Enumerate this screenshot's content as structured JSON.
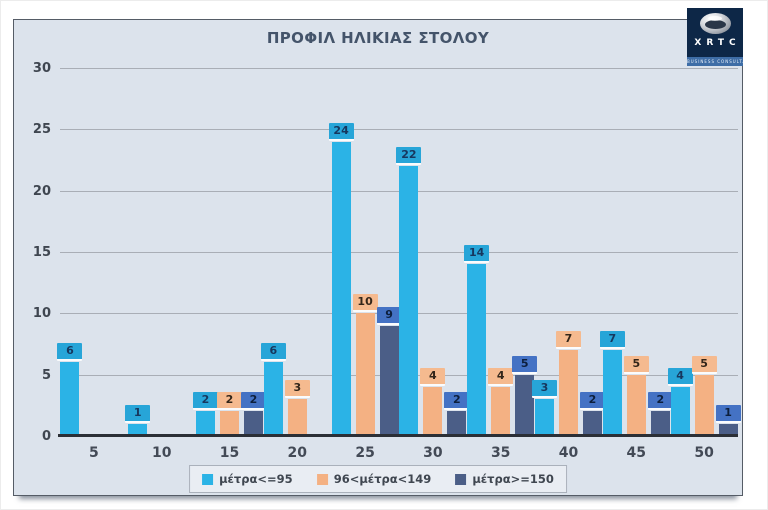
{
  "title": "ΠΡΟΦΙΛ ΗΛΙΚΙΑΣ ΣΤΟΛΟΥ",
  "logo": {
    "name": "XRTC",
    "tagline": "BUSINESS CONSULTANTS"
  },
  "colors": {
    "chart_background": "#dce3ec",
    "chart_border": "#555c66",
    "gridline": "#a9aeb6",
    "axis_line": "#2b2f36",
    "tick_text": "#3f4650",
    "title_text": "#44546a",
    "legend_background": "#e9edf3",
    "logo_background": "#0d2747",
    "logo_strip": "#3e6da6"
  },
  "chart_data": {
    "type": "bar",
    "title": "ΠΡΟΦΙΛ ΗΛΙΚΙΑΣ ΣΤΟΛΟΥ",
    "categories": [
      "5",
      "10",
      "15",
      "20",
      "25",
      "30",
      "35",
      "40",
      "45",
      "50"
    ],
    "series": [
      {
        "name": "μέτρα<=95",
        "color": "#2bb3e6",
        "label_bg": "#27a5d8",
        "label_text": "#17375e",
        "values": [
          6,
          1,
          2,
          6,
          24,
          22,
          14,
          3,
          7,
          4
        ]
      },
      {
        "name": "96<μέτρα<149",
        "color": "#f4b183",
        "label_bg": "#f5ba8f",
        "label_text": "#33261a",
        "values": [
          null,
          null,
          2,
          3,
          10,
          4,
          4,
          7,
          5,
          5
        ]
      },
      {
        "name": "μέτρα>=150",
        "color": "#4b5e87",
        "label_bg": "#4472c4",
        "label_text": "#0d1f3c",
        "values": [
          null,
          null,
          2,
          null,
          9,
          2,
          5,
          2,
          2,
          1
        ]
      }
    ],
    "ylim": [
      0,
      30
    ],
    "yticks": [
      0,
      5,
      10,
      15,
      20,
      25,
      30
    ],
    "grid": true,
    "xlabel": "",
    "ylabel": "",
    "legend_position": "bottom",
    "data_labels": "outside-end"
  }
}
